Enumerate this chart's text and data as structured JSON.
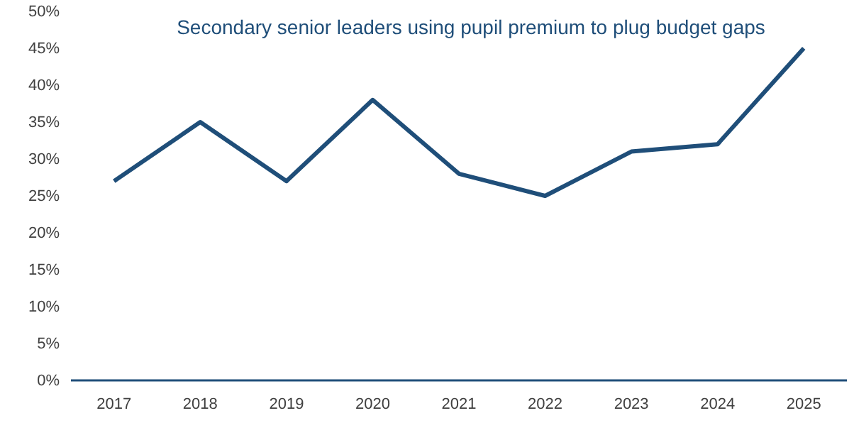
{
  "chart_data": {
    "type": "line",
    "title": "Secondary senior leaders using pupil premium to plug budget gaps",
    "categories": [
      "2017",
      "2018",
      "2019",
      "2020",
      "2021",
      "2022",
      "2023",
      "2024",
      "2025"
    ],
    "series": [
      {
        "color": "#1f4e79",
        "values": [
          27,
          35,
          27,
          38,
          28,
          25,
          31,
          32,
          45
        ]
      }
    ],
    "ylim": [
      0,
      50
    ],
    "yticks": [
      {
        "value": 0,
        "label": "0%"
      },
      {
        "value": 5,
        "label": "5%"
      },
      {
        "value": 10,
        "label": "10%"
      },
      {
        "value": 15,
        "label": "15%"
      },
      {
        "value": 20,
        "label": "20%"
      },
      {
        "value": 25,
        "label": "25%"
      },
      {
        "value": 30,
        "label": "30%"
      },
      {
        "value": 35,
        "label": "35%"
      },
      {
        "value": 40,
        "label": "40%"
      },
      {
        "value": 45,
        "label": "45%"
      },
      {
        "value": 50,
        "label": "50%"
      }
    ],
    "grid": false,
    "line_style": "solid",
    "marker": "none"
  }
}
